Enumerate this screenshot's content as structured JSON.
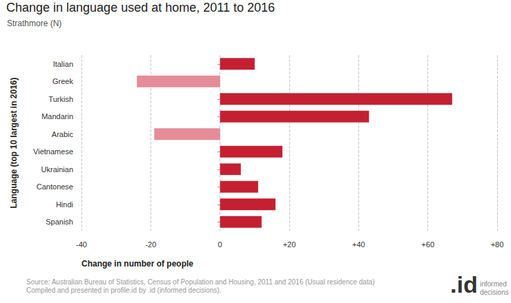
{
  "chart_data": {
    "type": "bar",
    "orientation": "horizontal",
    "title": "Change in language used at home, 2011 to 2016",
    "subtitle": "Strathmore (N)",
    "xlabel": "Change in number of people",
    "ylabel": "Language (top 10 largest in 2016)",
    "categories": [
      "Italian",
      "Greek",
      "Turkish",
      "Mandarin",
      "Arabic",
      "Vietnamese",
      "Ukrainian",
      "Cantonese",
      "Hindi",
      "Spanish"
    ],
    "values": [
      10,
      -24,
      67,
      43,
      -19,
      18,
      6,
      11,
      16,
      12
    ],
    "colors": [
      "#c42032",
      "#e58c98",
      "#c42032",
      "#c42032",
      "#e58c98",
      "#c42032",
      "#c42032",
      "#c42032",
      "#c42032",
      "#c42032"
    ],
    "xlim": [
      -40,
      80
    ],
    "xticks": [
      -40,
      -20,
      0,
      {
        "value": 20,
        "label": "+20"
      },
      {
        "value": 40,
        "label": "+40"
      },
      {
        "value": 60,
        "label": "+60"
      },
      {
        "value": 80,
        "label": "+80"
      }
    ],
    "grid": true,
    "annotations": [
      "Source: Australian Bureau of Statistics, Census of Population and Housing, 2011 and 2016 (Usual residence data)",
      "Compiled and presented in profile.id by .id (informed decisions).",
      ".id",
      "informed",
      "decisions"
    ]
  }
}
